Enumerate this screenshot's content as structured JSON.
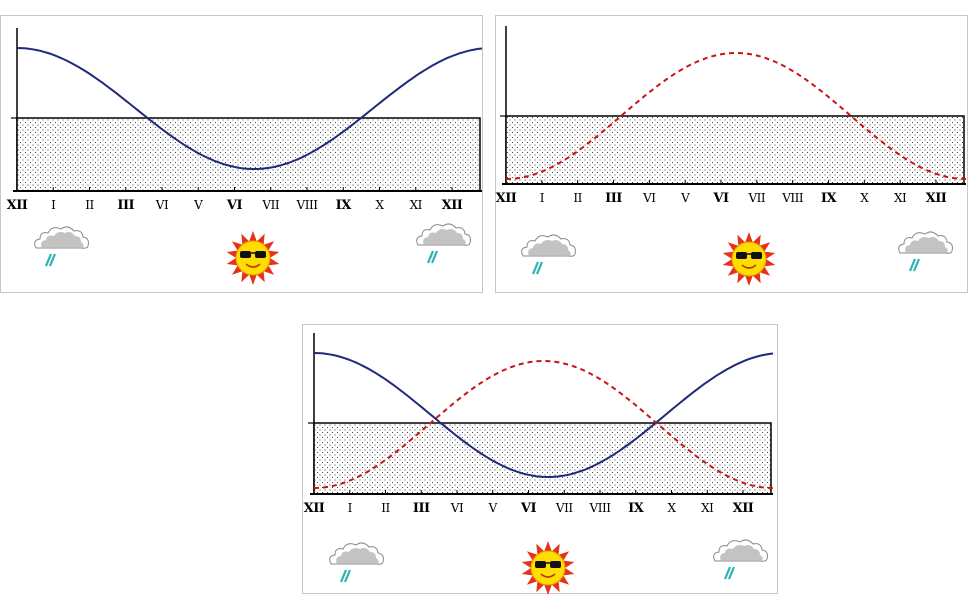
{
  "colors": {
    "solid_curve": "#1f2a7a",
    "dashed_curve": "#c81414",
    "band_fill": "#ffffff",
    "band_dots": "#1a1a1a",
    "axis": "#000000",
    "sun_fill": "#ffdd00",
    "sun_rays": "#e8311a",
    "cloud": "#b8b8b8",
    "rain": "#2bb3b3"
  },
  "icons": {
    "left": "rain-cloud-icon",
    "center": "sun-with-sunglasses-icon",
    "right": "rain-cloud-icon"
  },
  "ticks": [
    {
      "label": "XII",
      "bold": true
    },
    {
      "label": "I",
      "bold": false
    },
    {
      "label": "II",
      "bold": false
    },
    {
      "label": "III",
      "bold": true
    },
    {
      "label": "VI",
      "bold": false
    },
    {
      "label": "V",
      "bold": false
    },
    {
      "label": "VI",
      "bold": true
    },
    {
      "label": "VII",
      "bold": false
    },
    {
      "label": "VIII",
      "bold": false
    },
    {
      "label": "IX",
      "bold": true
    },
    {
      "label": "X",
      "bold": false
    },
    {
      "label": "XI",
      "bold": false
    },
    {
      "label": "XII",
      "bold": true
    }
  ],
  "panels": [
    {
      "id": "top-left",
      "curves": [
        "solid"
      ]
    },
    {
      "id": "top-right",
      "curves": [
        "dashed"
      ]
    },
    {
      "id": "bottom",
      "curves": [
        "solid",
        "dashed"
      ]
    }
  ]
}
